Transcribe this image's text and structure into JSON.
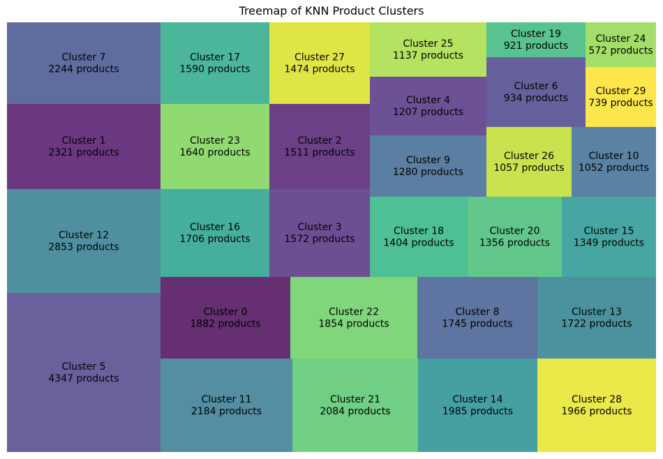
{
  "chart_data": {
    "type": "treemap",
    "title": "Treemap of KNN Product Clusters",
    "unit_label": "products",
    "cells": [
      {
        "label": "Cluster 7",
        "value": 2244,
        "color": "#5f6c9e"
      },
      {
        "label": "Cluster 1",
        "value": 2321,
        "color": "#6b3780"
      },
      {
        "label": "Cluster 12",
        "value": 2853,
        "color": "#4f8f9f"
      },
      {
        "label": "Cluster 5",
        "value": 4347,
        "color": "#69619c"
      },
      {
        "label": "Cluster 17",
        "value": 1590,
        "color": "#4bb69a"
      },
      {
        "label": "Cluster 27",
        "value": 1474,
        "color": "#dee545"
      },
      {
        "label": "Cluster 23",
        "value": 1640,
        "color": "#91da72"
      },
      {
        "label": "Cluster 2",
        "value": 1511,
        "color": "#6b4087"
      },
      {
        "label": "Cluster 16",
        "value": 1706,
        "color": "#46ae9c"
      },
      {
        "label": "Cluster 3",
        "value": 1572,
        "color": "#6d4e92"
      },
      {
        "label": "Cluster 25",
        "value": 1137,
        "color": "#b4e261"
      },
      {
        "label": "Cluster 19",
        "value": 921,
        "color": "#58c38e"
      },
      {
        "label": "Cluster 24",
        "value": 572,
        "color": "#a3de6a"
      },
      {
        "label": "Cluster 4",
        "value": 1207,
        "color": "#6c5195"
      },
      {
        "label": "Cluster 6",
        "value": 934,
        "color": "#66619c"
      },
      {
        "label": "Cluster 29",
        "value": 739,
        "color": "#fde74c"
      },
      {
        "label": "Cluster 9",
        "value": 1280,
        "color": "#5a7fa2"
      },
      {
        "label": "Cluster 26",
        "value": 1057,
        "color": "#c9e24e"
      },
      {
        "label": "Cluster 10",
        "value": 1052,
        "color": "#5982a3"
      },
      {
        "label": "Cluster 18",
        "value": 1404,
        "color": "#4fbf95"
      },
      {
        "label": "Cluster 20",
        "value": 1356,
        "color": "#62c78a"
      },
      {
        "label": "Cluster 15",
        "value": 1349,
        "color": "#47a6a1"
      },
      {
        "label": "Cluster 0",
        "value": 1882,
        "color": "#652f72"
      },
      {
        "label": "Cluster 22",
        "value": 1854,
        "color": "#80d67b"
      },
      {
        "label": "Cluster 8",
        "value": 1745,
        "color": "#5d75a0"
      },
      {
        "label": "Cluster 13",
        "value": 1722,
        "color": "#4b929f"
      },
      {
        "label": "Cluster 11",
        "value": 2184,
        "color": "#548ea2"
      },
      {
        "label": "Cluster 21",
        "value": 2084,
        "color": "#70cf82"
      },
      {
        "label": "Cluster 14",
        "value": 1985,
        "color": "#46a0a2"
      },
      {
        "label": "Cluster 28",
        "value": 1966,
        "color": "#ebe849"
      }
    ]
  }
}
